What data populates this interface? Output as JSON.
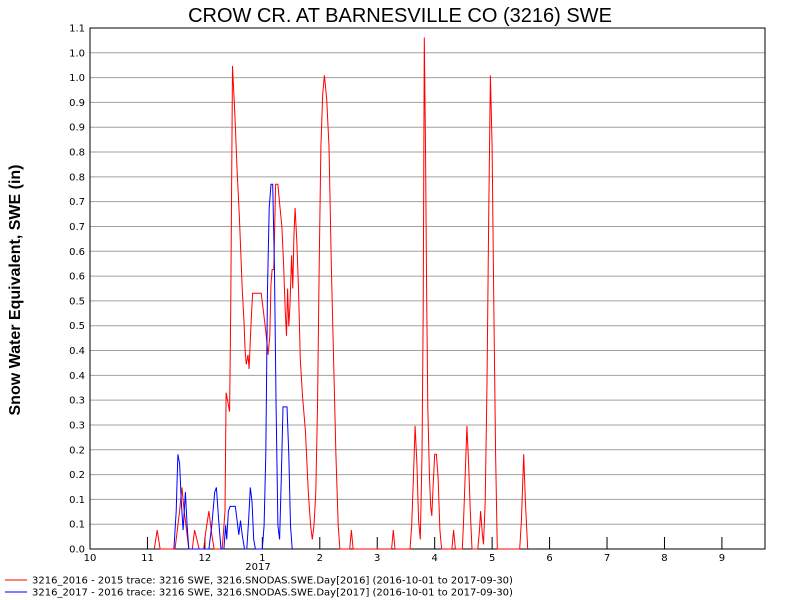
{
  "chart_data": {
    "type": "line",
    "title": "CROW CR. AT BARNESVILLE CO (3216) SWE",
    "ylabel": "Snow Water Equivalent, SWE (in)",
    "xlabel": "",
    "ylim": [
      0.0,
      1.1
    ],
    "y_ticks": [
      "0.0",
      "0.1",
      "0.1",
      "0.2",
      "0.2",
      "0.3",
      "0.3",
      "0.4",
      "0.4",
      "0.5",
      "0.5",
      "0.6",
      "0.6",
      "0.7",
      "0.7",
      "0.8",
      "0.8",
      "0.9",
      "0.9",
      "1.0",
      "1.0",
      "1.1"
    ],
    "x_ticks": [
      "10",
      "11",
      "12",
      "1",
      "2",
      "3",
      "4",
      "5",
      "6",
      "7",
      "8",
      "9"
    ],
    "x_year_label": "2017",
    "xlim_months": [
      0,
      11.75
    ],
    "grid": "horizontal",
    "legend_position": "bottom",
    "series": [
      {
        "name": "3216_2016 - 2015 trace: 3216 SWE, 3216.SNODAS.SWE.Day[2016] (2016-10-01 to 2017-09-30)",
        "color": "#ff0000",
        "points": [
          [
            1.12,
            0
          ],
          [
            1.17,
            0.04
          ],
          [
            1.22,
            0
          ],
          [
            1.48,
            0
          ],
          [
            1.52,
            0.04
          ],
          [
            1.56,
            0.08
          ],
          [
            1.6,
            0.13
          ],
          [
            1.64,
            0.08
          ],
          [
            1.68,
            0.04
          ],
          [
            1.72,
            0
          ],
          [
            1.78,
            0
          ],
          [
            1.82,
            0.04
          ],
          [
            1.86,
            0.02
          ],
          [
            1.9,
            0
          ],
          [
            1.98,
            0
          ],
          [
            2.02,
            0.04
          ],
          [
            2.07,
            0.08
          ],
          [
            2.12,
            0.03
          ],
          [
            2.16,
            0
          ],
          [
            2.3,
            0
          ],
          [
            2.32,
            0.03
          ],
          [
            2.35,
            0.08
          ],
          [
            2.37,
            0.33
          ],
          [
            2.4,
            0.31
          ],
          [
            2.43,
            0.29
          ],
          [
            2.45,
            0.5
          ],
          [
            2.48,
            1.02
          ],
          [
            2.52,
            0.92
          ],
          [
            2.56,
            0.8
          ],
          [
            2.6,
            0.7
          ],
          [
            2.65,
            0.55
          ],
          [
            2.68,
            0.48
          ],
          [
            2.7,
            0.42
          ],
          [
            2.72,
            0.39
          ],
          [
            2.75,
            0.41
          ],
          [
            2.77,
            0.38
          ],
          [
            2.8,
            0.47
          ],
          [
            2.83,
            0.54
          ],
          [
            2.9,
            0.54
          ],
          [
            2.98,
            0.54
          ],
          [
            3.02,
            0.5
          ],
          [
            3.06,
            0.46
          ],
          [
            3.1,
            0.41
          ],
          [
            3.13,
            0.45
          ],
          [
            3.15,
            0.56
          ],
          [
            3.17,
            0.59
          ],
          [
            3.2,
            0.59
          ],
          [
            3.23,
            0.77
          ],
          [
            3.27,
            0.77
          ],
          [
            3.3,
            0.73
          ],
          [
            3.34,
            0.68
          ],
          [
            3.37,
            0.6
          ],
          [
            3.4,
            0.5
          ],
          [
            3.42,
            0.45
          ],
          [
            3.44,
            0.55
          ],
          [
            3.46,
            0.47
          ],
          [
            3.48,
            0.51
          ],
          [
            3.51,
            0.62
          ],
          [
            3.53,
            0.55
          ],
          [
            3.55,
            0.66
          ],
          [
            3.57,
            0.72
          ],
          [
            3.6,
            0.65
          ],
          [
            3.63,
            0.55
          ],
          [
            3.66,
            0.4
          ],
          [
            3.7,
            0.32
          ],
          [
            3.75,
            0.25
          ],
          [
            3.8,
            0.12
          ],
          [
            3.84,
            0.05
          ],
          [
            3.87,
            0.02
          ],
          [
            3.9,
            0.05
          ],
          [
            3.93,
            0.12
          ],
          [
            3.96,
            0.3
          ],
          [
            3.99,
            0.6
          ],
          [
            4.02,
            0.85
          ],
          [
            4.05,
            0.96
          ],
          [
            4.08,
            1.0
          ],
          [
            4.12,
            0.95
          ],
          [
            4.16,
            0.85
          ],
          [
            4.2,
            0.6
          ],
          [
            4.24,
            0.4
          ],
          [
            4.28,
            0.2
          ],
          [
            4.32,
            0.05
          ],
          [
            4.35,
            0
          ],
          [
            4.52,
            0
          ],
          [
            4.55,
            0.04
          ],
          [
            4.58,
            0
          ],
          [
            5.25,
            0
          ],
          [
            5.28,
            0.04
          ],
          [
            5.31,
            0
          ],
          [
            5.57,
            0
          ],
          [
            5.6,
            0.05
          ],
          [
            5.63,
            0.15
          ],
          [
            5.66,
            0.26
          ],
          [
            5.69,
            0.18
          ],
          [
            5.72,
            0.06
          ],
          [
            5.75,
            0.02
          ],
          [
            5.78,
            0.2
          ],
          [
            5.8,
            0.5
          ],
          [
            5.82,
            1.08
          ],
          [
            5.84,
            0.85
          ],
          [
            5.86,
            0.55
          ],
          [
            5.88,
            0.3
          ],
          [
            5.91,
            0.15
          ],
          [
            5.93,
            0.09
          ],
          [
            5.95,
            0.07
          ],
          [
            5.98,
            0.15
          ],
          [
            6.0,
            0.2
          ],
          [
            6.03,
            0.2
          ],
          [
            6.06,
            0.15
          ],
          [
            6.09,
            0.04
          ],
          [
            6.12,
            0
          ],
          [
            6.3,
            0
          ],
          [
            6.33,
            0.04
          ],
          [
            6.36,
            0
          ],
          [
            6.48,
            0
          ],
          [
            6.5,
            0.05
          ],
          [
            6.53,
            0.15
          ],
          [
            6.56,
            0.26
          ],
          [
            6.59,
            0.18
          ],
          [
            6.62,
            0.08
          ],
          [
            6.65,
            0
          ],
          [
            6.75,
            0
          ],
          [
            6.78,
            0.04
          ],
          [
            6.8,
            0.08
          ],
          [
            6.83,
            0.03
          ],
          [
            6.85,
            0.01
          ],
          [
            6.88,
            0.1
          ],
          [
            6.91,
            0.35
          ],
          [
            6.94,
            0.7
          ],
          [
            6.97,
            1.0
          ],
          [
            7.0,
            0.85
          ],
          [
            7.03,
            0.5
          ],
          [
            7.06,
            0.2
          ],
          [
            7.09,
            0
          ],
          [
            7.48,
            0
          ],
          [
            7.51,
            0.06
          ],
          [
            7.55,
            0.2
          ],
          [
            7.58,
            0.1
          ],
          [
            7.62,
            0
          ]
        ]
      },
      {
        "name": "3216_2017 - 2016 trace: 3216 SWE, 3216.SNODAS.SWE.Day[2017] (2016-10-01 to 2017-09-30)",
        "color": "#0000ff",
        "points": [
          [
            1.46,
            0
          ],
          [
            1.5,
            0.08
          ],
          [
            1.53,
            0.2
          ],
          [
            1.56,
            0.18
          ],
          [
            1.59,
            0.1
          ],
          [
            1.62,
            0.04
          ],
          [
            1.66,
            0.12
          ],
          [
            1.69,
            0.05
          ],
          [
            1.72,
            0
          ],
          [
            2.07,
            0
          ],
          [
            2.12,
            0.05
          ],
          [
            2.17,
            0.12
          ],
          [
            2.2,
            0.13
          ],
          [
            2.24,
            0.06
          ],
          [
            2.28,
            0
          ],
          [
            2.33,
            0
          ],
          [
            2.36,
            0.05
          ],
          [
            2.38,
            0.02
          ],
          [
            2.41,
            0.08
          ],
          [
            2.44,
            0.09
          ],
          [
            2.47,
            0.09
          ],
          [
            2.5,
            0.09
          ],
          [
            2.53,
            0.09
          ],
          [
            2.56,
            0.06
          ],
          [
            2.59,
            0.03
          ],
          [
            2.62,
            0.06
          ],
          [
            2.65,
            0.03
          ],
          [
            2.69,
            0
          ],
          [
            2.73,
            0
          ],
          [
            2.76,
            0.06
          ],
          [
            2.79,
            0.13
          ],
          [
            2.82,
            0.1
          ],
          [
            2.85,
            0.02
          ],
          [
            2.88,
            0
          ],
          [
            3.0,
            0
          ],
          [
            3.03,
            0.05
          ],
          [
            3.06,
            0.2
          ],
          [
            3.09,
            0.55
          ],
          [
            3.12,
            0.72
          ],
          [
            3.15,
            0.77
          ],
          [
            3.18,
            0.77
          ],
          [
            3.21,
            0.6
          ],
          [
            3.24,
            0.3
          ],
          [
            3.27,
            0.05
          ],
          [
            3.3,
            0.02
          ],
          [
            3.33,
            0.15
          ],
          [
            3.36,
            0.3
          ],
          [
            3.4,
            0.3
          ],
          [
            3.43,
            0.3
          ],
          [
            3.46,
            0.2
          ],
          [
            3.49,
            0.05
          ],
          [
            3.52,
            0
          ]
        ]
      }
    ]
  }
}
